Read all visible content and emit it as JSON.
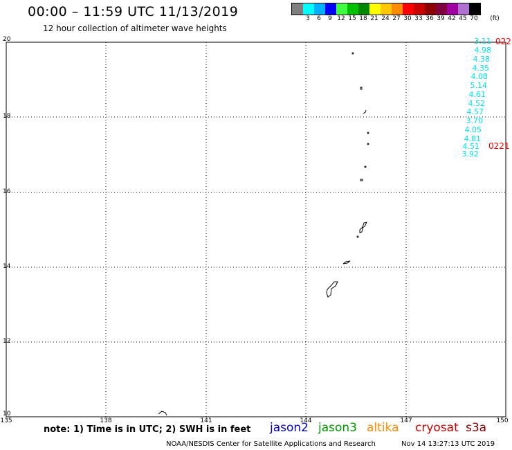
{
  "header": {
    "title": "00:00 – 11:59 UTC 11/13/2019",
    "subtitle": "12 hour collection of altimeter wave heights"
  },
  "legend": {
    "unit_label": "(ft)",
    "items": [
      {
        "label": "",
        "color": "#7f7f7f"
      },
      {
        "label": "3",
        "color": "#00ffff"
      },
      {
        "label": "6",
        "color": "#00b0ff"
      },
      {
        "label": "9",
        "color": "#0000ff"
      },
      {
        "label": "12",
        "color": "#40ff40"
      },
      {
        "label": "15",
        "color": "#00c000"
      },
      {
        "label": "18",
        "color": "#008800"
      },
      {
        "label": "21",
        "color": "#ffff00"
      },
      {
        "label": "24",
        "color": "#ffc800"
      },
      {
        "label": "27",
        "color": "#ff8c00"
      },
      {
        "label": "30",
        "color": "#ff0000"
      },
      {
        "label": "33",
        "color": "#c80000"
      },
      {
        "label": "36",
        "color": "#8b0000"
      },
      {
        "label": "39",
        "color": "#800040"
      },
      {
        "label": "42",
        "color": "#a000a0"
      },
      {
        "label": "45",
        "color": "#b070d0"
      },
      {
        "label": "70",
        "color": "#000000"
      }
    ]
  },
  "axes": {
    "y_labels": [
      "20",
      "18",
      "16",
      "14",
      "12",
      "10"
    ],
    "x_labels": [
      "135",
      "138",
      "141",
      "144",
      "147",
      "150"
    ]
  },
  "wave_heights": [
    "3.11",
    "4.98",
    "4.38",
    "4.35",
    "4.08",
    "5.14",
    "4.61",
    "4.52",
    "4.57",
    "3.70",
    "4.05",
    "4.81",
    "4.51",
    "3.92"
  ],
  "wave_color": "#00e0e8",
  "pass_times": [
    "022",
    "0221"
  ],
  "pass_color": "#ff0000",
  "footer": {
    "note": "note: 1) Time is in UTC; 2) SWH is in feet",
    "satellites": [
      {
        "name": "jason2",
        "color": "#0000cc"
      },
      {
        "name": "jason3",
        "color": "#009900"
      },
      {
        "name": "altika",
        "color": "#ff8c00"
      },
      {
        "name": "cryosat",
        "color": "#cc0000"
      },
      {
        "name": "s3a",
        "color": "#880000"
      }
    ],
    "credit": "NOAA/NESDIS Center for Satellite Applications and Research",
    "timestamp": "Nov 14 13:27:13 UTC 2019"
  }
}
